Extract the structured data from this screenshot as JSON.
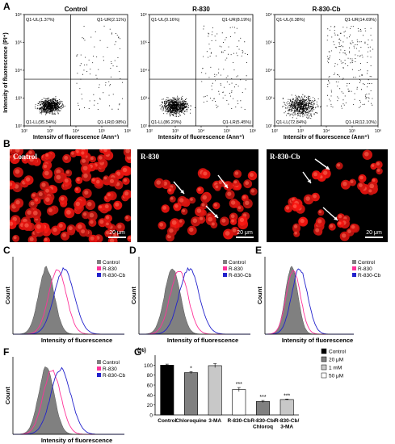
{
  "panel_labels": [
    "A",
    "B",
    "C",
    "D",
    "E",
    "F",
    "G"
  ],
  "flow_plots": [
    {
      "title": "Control",
      "quadrants": {
        "ul": "Q1-UL(1.37%)",
        "ur": "Q1-UR(2.11%)",
        "ll": "Q1-LL(95.54%)",
        "lr": "Q1-LR(0.98%)"
      }
    },
    {
      "title": "R-830",
      "quadrants": {
        "ul": "Q1-UL(0.16%)",
        "ur": "Q1-UR(8.19%)",
        "ll": "Q1-LL(86.20%)",
        "lr": "Q1-LR(5.45%)"
      }
    },
    {
      "title": "R-830-Cb",
      "quadrants": {
        "ul": "Q1-UL(0.38%)",
        "ur": "Q1-UR(14.69%)",
        "ll": "Q1-LL(72.84%)",
        "lr": "Q1-LR(12.10%)"
      }
    }
  ],
  "flow_axes": {
    "xlabel": "Intensity of fluorescence (Ann⁺)",
    "ylabel": "Intensity of fluorescence (PI⁺)",
    "ticks": [
      "10²",
      "10³",
      "10⁴",
      "10⁵",
      "10⁶"
    ]
  },
  "micrographs": [
    {
      "label": "Control",
      "scale": "20 μm"
    },
    {
      "label": "R-830",
      "scale": "20 μm"
    },
    {
      "label": "R-830-Cb",
      "scale": "20 μm"
    }
  ],
  "histograms": {
    "xlabel": "Intensity of fluorescence",
    "ylabel": "Count",
    "legend": [
      "Control",
      "R-830",
      "R-830-Cb"
    ],
    "colors": {
      "control": "#808080",
      "r830": "#ff3399",
      "r830cb": "#2222cc"
    }
  },
  "chart_data": {
    "type": "bar",
    "ylabel": "(%)",
    "ylim": [
      0,
      120
    ],
    "yticks": [
      0,
      20,
      40,
      60,
      80,
      100
    ],
    "categories": [
      "Control",
      "Chloroquine",
      "3-MA",
      "R-830-Cb",
      "R-830-Cb/\nChloroq",
      "R-830-Cb/\n3-MA"
    ],
    "values": [
      100,
      85,
      99,
      51,
      27,
      31
    ],
    "errors": [
      2,
      2,
      4,
      4,
      2,
      1
    ],
    "significance": [
      "",
      "*",
      "",
      "***",
      "***",
      "***"
    ],
    "bar_colors": [
      "#000000",
      "#808080",
      "#c8c8c8",
      "#ffffff",
      "#808080",
      "#c8c8c8"
    ],
    "legend": [
      {
        "name": "Control",
        "color": "#000000"
      },
      {
        "name": "20 μM",
        "color": "#808080"
      },
      {
        "name": "1 mM",
        "color": "#c8c8c8"
      },
      {
        "name": "50 μM",
        "color": "#ffffff"
      }
    ]
  }
}
